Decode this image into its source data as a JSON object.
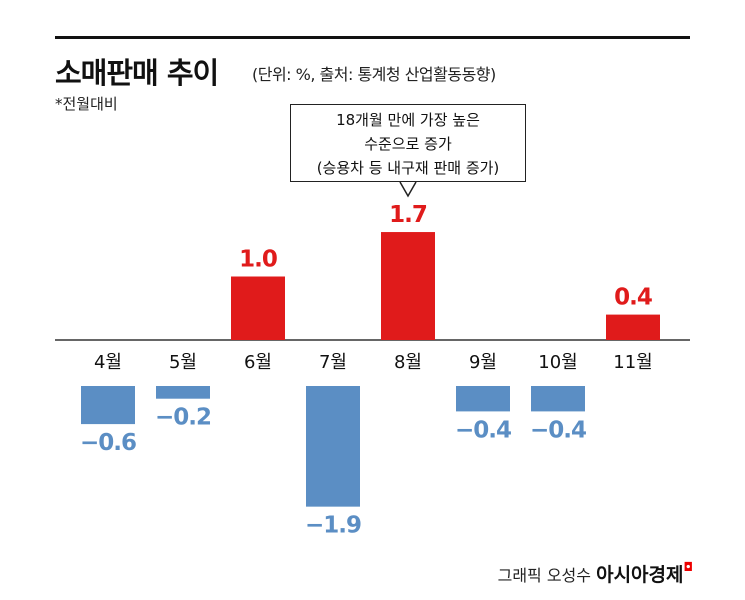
{
  "chart_data": {
    "type": "bar",
    "title": "소매판매 추이",
    "subtitle": "(단위: %, 출처: 통계청 산업활동동향)",
    "note": "*전월대비",
    "categories": [
      "4월",
      "5월",
      "6월",
      "7월",
      "8월",
      "9월",
      "10월",
      "11월"
    ],
    "values": [
      -0.6,
      -0.2,
      1.0,
      -1.9,
      1.7,
      -0.4,
      -0.4,
      0.4
    ],
    "value_labels": [
      "−0.6",
      "−0.2",
      "1.0",
      "−1.9",
      "1.7",
      "−0.4",
      "−0.4",
      "0.4"
    ],
    "colors": {
      "positive": "#e01b1b",
      "negative": "#5b8ec4",
      "axis": "#333333"
    },
    "annotation": {
      "target": "8월",
      "lines": [
        "18개월 만에 가장 높은",
        "수준으로 증가",
        "(승용차 등 내구재 판매 증가)"
      ]
    },
    "grid": false
  },
  "credit": {
    "text": "그래픽 오성수",
    "brand": "아시아경제"
  }
}
